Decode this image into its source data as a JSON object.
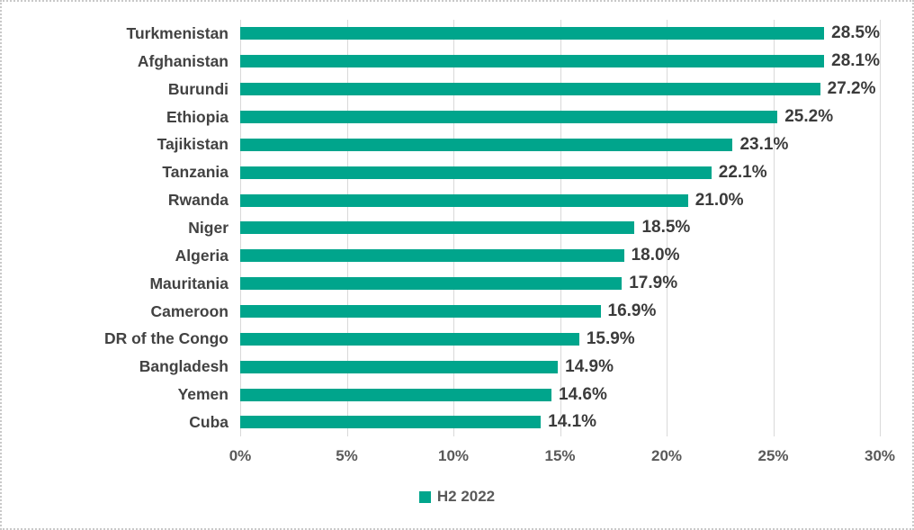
{
  "chart_data": {
    "type": "bar",
    "orientation": "horizontal",
    "title": "",
    "categories": [
      "Turkmenistan",
      "Afghanistan",
      "Burundi",
      "Ethiopia",
      "Tajikistan",
      "Tanzania",
      "Rwanda",
      "Niger",
      "Algeria",
      "Mauritania",
      "Cameroon",
      "DR of the Congo",
      "Bangladesh",
      "Yemen",
      "Cuba"
    ],
    "series": [
      {
        "name": "H2 2022",
        "values": [
          28.5,
          28.1,
          27.2,
          25.2,
          23.1,
          22.1,
          21.0,
          18.5,
          18.0,
          17.9,
          16.9,
          15.9,
          14.9,
          14.6,
          14.1
        ],
        "value_labels": [
          "28.5%",
          "28.1%",
          "27.2%",
          "25.2%",
          "23.1%",
          "22.1%",
          "21.0%",
          "18.5%",
          "18.0%",
          "17.9%",
          "16.9%",
          "15.9%",
          "14.9%",
          "14.6%",
          "14.1%"
        ]
      }
    ],
    "xlabel": "",
    "ylabel": "",
    "xlim": [
      0,
      30
    ],
    "x_ticks": [
      {
        "value": 0,
        "label": "0%"
      },
      {
        "value": 5,
        "label": "5%"
      },
      {
        "value": 10,
        "label": "10%"
      },
      {
        "value": 15,
        "label": "15%"
      },
      {
        "value": 20,
        "label": "20%"
      },
      {
        "value": 25,
        "label": "25%"
      },
      {
        "value": 30,
        "label": "30%"
      }
    ],
    "grid": true,
    "legend_position": "bottom",
    "colors": {
      "bar": "#00a58c",
      "category_label": "#424242",
      "value_label": "#3b3b3b",
      "tick_label": "#595959",
      "legend_text": "#595959",
      "gridline": "#d9d9d9",
      "background": "#ffffff"
    }
  }
}
